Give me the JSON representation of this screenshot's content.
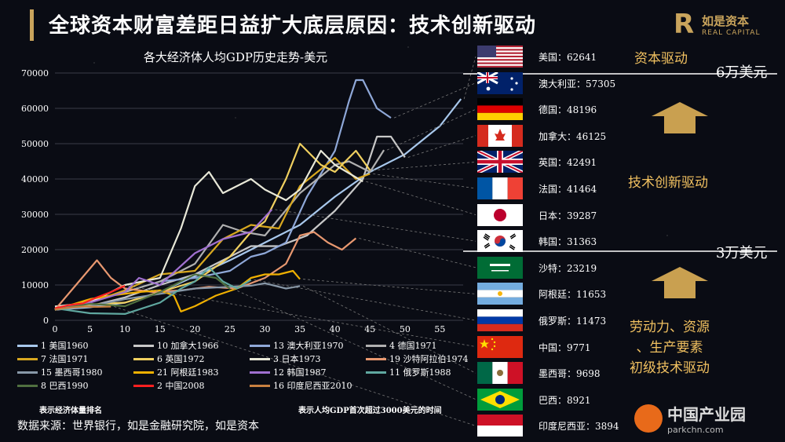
{
  "header": {
    "title": "全球资本财富差距日益扩大底层原因：技术创新驱动",
    "brand_cn": "如是资本",
    "brand_en": "REAL CAPITAL"
  },
  "chart_data": {
    "type": "line",
    "title": "各大经济体人均GDP历史走势-美元",
    "xlabel": "",
    "ylabel": "",
    "xlim": [
      0,
      60
    ],
    "ylim": [
      0,
      70000
    ],
    "x_ticks": [
      0,
      5,
      10,
      15,
      20,
      25,
      30,
      35,
      40,
      45,
      50,
      55
    ],
    "x_tick_labels": [
      "0",
      "5",
      "10",
      "15",
      "20",
      "25",
      "30",
      "35",
      "40",
      "45",
      "50",
      "55"
    ],
    "y_ticks": [
      0,
      10000,
      20000,
      30000,
      40000,
      50000,
      60000,
      70000
    ],
    "y_tick_labels": [
      "0",
      "10000",
      "20000",
      "30000",
      "40000",
      "50000",
      "60000",
      "70000"
    ],
    "grid": "horizontal",
    "series": [
      {
        "name": "1 美国1960",
        "color": "#a8c8ec",
        "values": [
          [
            0,
            3000
          ],
          [
            5,
            3700
          ],
          [
            10,
            5000
          ],
          [
            15,
            8000
          ],
          [
            20,
            12500
          ],
          [
            25,
            17000
          ],
          [
            30,
            22000
          ],
          [
            35,
            27000
          ],
          [
            40,
            35000
          ],
          [
            45,
            42000
          ],
          [
            50,
            47000
          ],
          [
            55,
            55000
          ],
          [
            58,
            62641
          ]
        ]
      },
      {
        "name": "10 加拿大1966",
        "color": "#c8c8c8",
        "values": [
          [
            0,
            3000
          ],
          [
            5,
            4000
          ],
          [
            10,
            6500
          ],
          [
            15,
            10000
          ],
          [
            20,
            13000
          ],
          [
            24,
            17000
          ],
          [
            28,
            21000
          ],
          [
            32,
            21000
          ],
          [
            36,
            24000
          ],
          [
            40,
            31000
          ],
          [
            44,
            40000
          ],
          [
            46,
            52000
          ],
          [
            48,
            52000
          ],
          [
            50,
            46125
          ]
        ]
      },
      {
        "name": "13 澳大利亚1970",
        "color": "#8fa8d8",
        "values": [
          [
            0,
            3300
          ],
          [
            5,
            5500
          ],
          [
            10,
            8000
          ],
          [
            15,
            11000
          ],
          [
            20,
            12000
          ],
          [
            25,
            14000
          ],
          [
            28,
            18000
          ],
          [
            30,
            19000
          ],
          [
            33,
            22000
          ],
          [
            36,
            35000
          ],
          [
            40,
            48000
          ],
          [
            42,
            62000
          ],
          [
            43,
            68000
          ],
          [
            44,
            68000
          ],
          [
            46,
            60000
          ],
          [
            48,
            57305
          ]
        ]
      },
      {
        "name": "4 德国1971",
        "color": "#b0b0b0",
        "values": [
          [
            0,
            3000
          ],
          [
            5,
            5500
          ],
          [
            10,
            8000
          ],
          [
            15,
            11000
          ],
          [
            20,
            16000
          ],
          [
            24,
            27000
          ],
          [
            27,
            25000
          ],
          [
            30,
            24000
          ],
          [
            35,
            36000
          ],
          [
            40,
            44000
          ],
          [
            42,
            45000
          ],
          [
            45,
            42000
          ],
          [
            47,
            48196
          ]
        ]
      },
      {
        "name": "7 法国1971",
        "color": "#d8a820",
        "values": [
          [
            0,
            3100
          ],
          [
            5,
            5000
          ],
          [
            10,
            8500
          ],
          [
            15,
            13000
          ],
          [
            20,
            14000
          ],
          [
            24,
            23000
          ],
          [
            28,
            27000
          ],
          [
            32,
            26000
          ],
          [
            35,
            38000
          ],
          [
            40,
            46000
          ],
          [
            43,
            40000
          ],
          [
            45,
            41464
          ]
        ]
      },
      {
        "name": "6 英国1972",
        "color": "#f0d060",
        "values": [
          [
            0,
            3000
          ],
          [
            5,
            4500
          ],
          [
            10,
            5000
          ],
          [
            15,
            8000
          ],
          [
            20,
            11000
          ],
          [
            25,
            18000
          ],
          [
            28,
            25000
          ],
          [
            30,
            28000
          ],
          [
            33,
            40000
          ],
          [
            35,
            50000
          ],
          [
            38,
            44000
          ],
          [
            40,
            42000
          ],
          [
            43,
            48000
          ],
          [
            45,
            42491
          ]
        ]
      },
      {
        "name": "3 日本1973",
        "color": "#e8e8d8",
        "values": [
          [
            0,
            3900
          ],
          [
            5,
            5000
          ],
          [
            10,
            10000
          ],
          [
            15,
            12000
          ],
          [
            18,
            26000
          ],
          [
            20,
            38000
          ],
          [
            22,
            42000
          ],
          [
            24,
            36000
          ],
          [
            26,
            38000
          ],
          [
            28,
            40000
          ],
          [
            30,
            37000
          ],
          [
            33,
            34000
          ],
          [
            35,
            37000
          ],
          [
            38,
            48000
          ],
          [
            40,
            44000
          ],
          [
            44,
            39287
          ]
        ]
      },
      {
        "name": "19 沙特阿拉伯1974",
        "color": "#e89870",
        "values": [
          [
            0,
            3000
          ],
          [
            3,
            10000
          ],
          [
            6,
            17000
          ],
          [
            8,
            12000
          ],
          [
            10,
            9000
          ],
          [
            14,
            8000
          ],
          [
            18,
            8500
          ],
          [
            22,
            9500
          ],
          [
            26,
            9000
          ],
          [
            30,
            12000
          ],
          [
            33,
            16000
          ],
          [
            35,
            24000
          ],
          [
            37,
            25000
          ],
          [
            39,
            22000
          ],
          [
            41,
            20000
          ],
          [
            43,
            23219
          ]
        ]
      },
      {
        "name": "15 墨西哥1980",
        "color": "#8898a8",
        "values": [
          [
            0,
            3000
          ],
          [
            5,
            4000
          ],
          [
            10,
            6000
          ],
          [
            15,
            7500
          ],
          [
            20,
            9000
          ],
          [
            25,
            9500
          ],
          [
            28,
            9800
          ],
          [
            30,
            10500
          ],
          [
            33,
            9000
          ],
          [
            35,
            9698
          ]
        ]
      },
      {
        "name": "21 阿根廷1983",
        "color": "#f0b000",
        "values": [
          [
            0,
            3000
          ],
          [
            5,
            6000
          ],
          [
            8,
            7000
          ],
          [
            12,
            8000
          ],
          [
            15,
            8500
          ],
          [
            17,
            7000
          ],
          [
            18,
            2500
          ],
          [
            20,
            4000
          ],
          [
            23,
            7000
          ],
          [
            26,
            9000
          ],
          [
            28,
            12000
          ],
          [
            30,
            13000
          ],
          [
            32,
            13000
          ],
          [
            34,
            14000
          ],
          [
            35,
            11653
          ]
        ]
      },
      {
        "name": "12 韩国1987",
        "color": "#a070d0",
        "values": [
          [
            0,
            3300
          ],
          [
            5,
            5000
          ],
          [
            10,
            8000
          ],
          [
            12,
            12000
          ],
          [
            15,
            10000
          ],
          [
            20,
            19000
          ],
          [
            24,
            23000
          ],
          [
            28,
            25000
          ],
          [
            31,
            31363
          ]
        ]
      },
      {
        "name": "11 俄罗斯1988",
        "color": "#60a8a0",
        "values": [
          [
            0,
            3400
          ],
          [
            5,
            2000
          ],
          [
            10,
            1800
          ],
          [
            15,
            5000
          ],
          [
            18,
            9000
          ],
          [
            20,
            11000
          ],
          [
            22,
            15000
          ],
          [
            24,
            11000
          ],
          [
            26,
            9000
          ],
          [
            28,
            11473
          ]
        ]
      },
      {
        "name": "8 巴西1990",
        "color": "#507040",
        "values": [
          [
            0,
            3100
          ],
          [
            5,
            4700
          ],
          [
            10,
            4000
          ],
          [
            15,
            8000
          ],
          [
            20,
            13000
          ],
          [
            23,
            12000
          ],
          [
            25,
            8921
          ]
        ]
      },
      {
        "name": "2 中国2008",
        "color": "#ff2020",
        "values": [
          [
            0,
            3400
          ],
          [
            2,
            4300
          ],
          [
            4,
            4800
          ],
          [
            6,
            6500
          ],
          [
            8,
            8000
          ],
          [
            10,
            9771
          ]
        ]
      },
      {
        "name": "16 印度尼西亚2010",
        "color": "#c88040",
        "values": [
          [
            0,
            3100
          ],
          [
            2,
            3600
          ],
          [
            4,
            3900
          ],
          [
            6,
            3800
          ],
          [
            8,
            3894
          ]
        ]
      }
    ]
  },
  "countries": [
    {
      "flag": "us",
      "label": "美国：62641"
    },
    {
      "flag": "au",
      "label": "澳大利亚：57305"
    },
    {
      "flag": "de",
      "label": "德国：48196"
    },
    {
      "flag": "ca",
      "label": "加拿大：46125"
    },
    {
      "flag": "gb",
      "label": "英国：42491"
    },
    {
      "flag": "fr",
      "label": "法国：41464"
    },
    {
      "flag": "jp",
      "label": "日本：39287"
    },
    {
      "flag": "kr",
      "label": "韩国：31363"
    },
    {
      "flag": "sa",
      "label": "沙特：23219"
    },
    {
      "flag": "ar",
      "label": "阿根廷：11653"
    },
    {
      "flag": "ru",
      "label": "俄罗斯：11473"
    },
    {
      "flag": "cn",
      "label": "中国：9771"
    },
    {
      "flag": "mx",
      "label": "墨西哥：9698"
    },
    {
      "flag": "br",
      "label": "巴西：8921"
    },
    {
      "flag": "id",
      "label": "印度尼西亚：3894"
    }
  ],
  "side": {
    "capital": "资本驱动",
    "six": "6万美元",
    "tech": "技术创新驱动",
    "three": "3万美元",
    "labor1": "劳动力、资源",
    "labor2": "、生产要素",
    "labor3": "初级技术驱动"
  },
  "notes": {
    "rank": "表示经济体量排名",
    "start": "表示人均GDP首次超过3000美元的时间"
  },
  "source": "数据来源：世界银行，如是金融研究院，如是资本",
  "watermark": {
    "cn": "中国产业园",
    "en": "parkchn.com"
  },
  "colors": {
    "gold": "#c9a45c",
    "accent": "#f0c060",
    "arrow": "#c9a050"
  }
}
